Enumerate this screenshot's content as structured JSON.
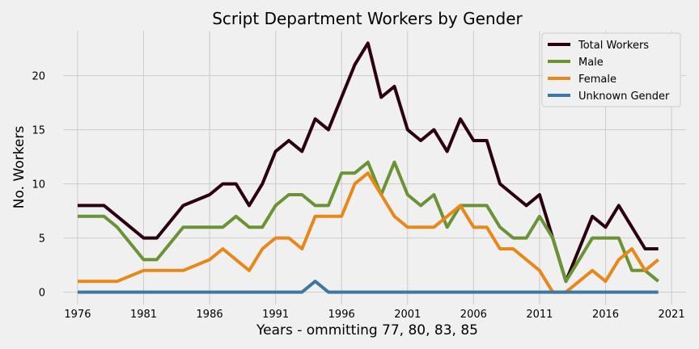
{
  "chart_data": {
    "type": "line",
    "title": "Script Department Workers by Gender",
    "xlabel": "Years - ommitting 77, 80, 83, 85",
    "ylabel": "No. Workers",
    "x": [
      1976,
      1978,
      1979,
      1981,
      1982,
      1984,
      1986,
      1987,
      1988,
      1989,
      1990,
      1991,
      1992,
      1993,
      1994,
      1995,
      1996,
      1997,
      1998,
      1999,
      2000,
      2001,
      2002,
      2003,
      2004,
      2005,
      2006,
      2007,
      2008,
      2009,
      2010,
      2011,
      2012,
      2013,
      2014,
      2015,
      2016,
      2017,
      2018,
      2019,
      2020
    ],
    "x_ticks": [
      1976,
      1981,
      1986,
      1991,
      1996,
      2001,
      2006,
      2011,
      2016,
      2021
    ],
    "y_ticks": [
      0,
      5,
      10,
      15,
      20
    ],
    "xlim": [
      1974.9,
      2022.1
    ],
    "ylim": [
      -1.15,
      24.15
    ],
    "grid": true,
    "legend_position": "top-right",
    "series": [
      {
        "name": "Total Workers",
        "color": "#2b0011",
        "values": [
          8,
          8,
          7,
          5,
          5,
          8,
          9,
          10,
          10,
          8,
          10,
          13,
          14,
          13,
          16,
          15,
          18,
          21,
          23,
          18,
          19,
          15,
          14,
          15,
          13,
          16,
          14,
          14,
          10,
          9,
          8,
          9,
          5,
          1,
          4,
          7,
          6,
          8,
          6,
          4,
          4
        ]
      },
      {
        "name": "Male",
        "color": "#6a9334",
        "values": [
          7,
          7,
          6,
          3,
          3,
          6,
          6,
          6,
          7,
          6,
          6,
          8,
          9,
          9,
          8,
          8,
          11,
          11,
          12,
          9,
          12,
          9,
          8,
          9,
          6,
          8,
          8,
          8,
          6,
          5,
          5,
          7,
          5,
          1,
          3,
          5,
          5,
          5,
          2,
          2,
          1
        ]
      },
      {
        "name": "Female",
        "color": "#e8871a",
        "values": [
          1,
          1,
          1,
          2,
          2,
          2,
          3,
          4,
          3,
          2,
          4,
          5,
          5,
          4,
          7,
          7,
          7,
          10,
          11,
          9,
          7,
          6,
          6,
          6,
          7,
          8,
          6,
          6,
          4,
          4,
          3,
          2,
          0,
          0,
          1,
          2,
          1,
          3,
          4,
          2,
          3
        ]
      },
      {
        "name": "Unknown Gender",
        "color": "#3d77a3",
        "values": [
          0,
          0,
          0,
          0,
          0,
          0,
          0,
          0,
          0,
          0,
          0,
          0,
          0,
          0,
          1,
          0,
          0,
          0,
          0,
          0,
          0,
          0,
          0,
          0,
          0,
          0,
          0,
          0,
          0,
          0,
          0,
          0,
          0,
          0,
          0,
          0,
          0,
          0,
          0,
          0,
          0
        ]
      }
    ]
  }
}
